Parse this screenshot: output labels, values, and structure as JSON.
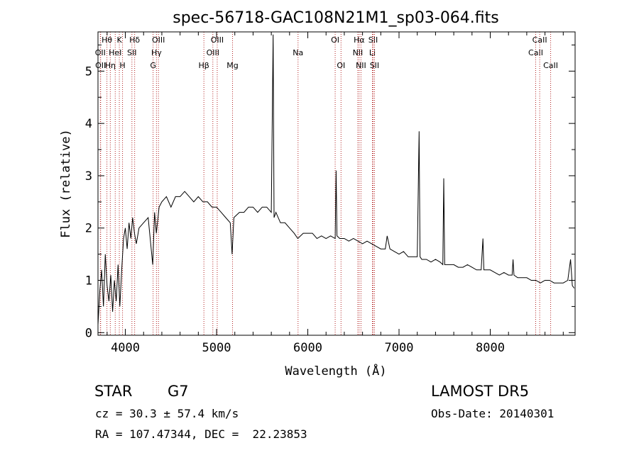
{
  "chart_data": {
    "type": "line",
    "title": "spec-56718-GAC108N21M1_sp03-064.fits",
    "xlabel": "Wavelength (Å)",
    "ylabel": "Flux (relative)",
    "xlim": [
      3700,
      8930
    ],
    "ylim": [
      -0.05,
      5.75
    ],
    "x_ticks": [
      4000,
      5000,
      6000,
      7000,
      8000
    ],
    "y_ticks": [
      0,
      1,
      2,
      3,
      4,
      5
    ],
    "grid": false,
    "line_color": "#000000",
    "marker_color": "#b22222",
    "series": [
      {
        "x": [
          3700,
          3720,
          3740,
          3760,
          3780,
          3800,
          3820,
          3840,
          3860,
          3880,
          3900,
          3920,
          3940,
          3960,
          3980,
          4000,
          4020,
          4040,
          4060,
          4080,
          4100,
          4120,
          4150,
          4200,
          4250,
          4300,
          4320,
          4340,
          4370,
          4400,
          4450,
          4500,
          4550,
          4600,
          4650,
          4700,
          4750,
          4800,
          4850,
          4900,
          4950,
          5000,
          5050,
          5100,
          5150,
          5170,
          5190,
          5250,
          5300,
          5350,
          5400,
          5450,
          5500,
          5550,
          5600,
          5620,
          5630,
          5650,
          5700,
          5750,
          5800,
          5850,
          5890,
          5950,
          6000,
          6050,
          6100,
          6150,
          6200,
          6250,
          6300,
          6310,
          6320,
          6350,
          6400,
          6450,
          6500,
          6550,
          6600,
          6650,
          6700,
          6750,
          6800,
          6850,
          6870,
          6900,
          6950,
          7000,
          7050,
          7100,
          7150,
          7200,
          7220,
          7230,
          7250,
          7300,
          7350,
          7400,
          7450,
          7480,
          7490,
          7500,
          7550,
          7600,
          7650,
          7700,
          7750,
          7800,
          7850,
          7900,
          7920,
          7930,
          7950,
          8000,
          8050,
          8100,
          8150,
          8200,
          8240,
          8250,
          8260,
          8300,
          8350,
          8400,
          8450,
          8500,
          8550,
          8600,
          8650,
          8700,
          8750,
          8800,
          8850,
          8880,
          8900,
          8920
        ],
        "y": [
          0.15,
          0.8,
          1.2,
          0.5,
          1.5,
          0.9,
          0.6,
          1.1,
          0.4,
          1.0,
          0.6,
          1.3,
          0.5,
          1.2,
          1.8,
          2.0,
          1.6,
          2.1,
          1.8,
          2.2,
          1.9,
          1.7,
          2.0,
          2.1,
          2.2,
          1.3,
          2.3,
          1.9,
          2.4,
          2.5,
          2.6,
          2.4,
          2.6,
          2.6,
          2.7,
          2.6,
          2.5,
          2.6,
          2.5,
          2.5,
          2.4,
          2.4,
          2.3,
          2.2,
          2.1,
          1.5,
          2.2,
          2.3,
          2.3,
          2.4,
          2.4,
          2.3,
          2.4,
          2.4,
          2.3,
          5.7,
          2.2,
          2.3,
          2.1,
          2.1,
          2.0,
          1.9,
          1.8,
          1.9,
          1.9,
          1.9,
          1.8,
          1.85,
          1.8,
          1.85,
          1.8,
          3.1,
          1.85,
          1.8,
          1.8,
          1.75,
          1.8,
          1.75,
          1.7,
          1.75,
          1.7,
          1.65,
          1.6,
          1.6,
          1.85,
          1.6,
          1.55,
          1.5,
          1.55,
          1.45,
          1.45,
          1.45,
          3.85,
          1.45,
          1.4,
          1.4,
          1.35,
          1.4,
          1.35,
          1.3,
          2.95,
          1.3,
          1.3,
          1.3,
          1.25,
          1.25,
          1.3,
          1.25,
          1.2,
          1.2,
          1.8,
          1.2,
          1.2,
          1.2,
          1.15,
          1.1,
          1.15,
          1.1,
          1.1,
          1.4,
          1.1,
          1.05,
          1.05,
          1.05,
          1.0,
          1.0,
          0.95,
          1.0,
          1.0,
          0.95,
          0.95,
          0.95,
          1.0,
          1.4,
          0.9,
          0.85
        ]
      }
    ],
    "line_markers": [
      {
        "wl": 3798,
        "label": "Hθ",
        "row": 0
      },
      {
        "wl": 3726,
        "label": "OII",
        "row": 1
      },
      {
        "wl": 3729,
        "label": "OII",
        "row": 2
      },
      {
        "wl": 3835,
        "label": "Hη",
        "row": 2
      },
      {
        "wl": 3889,
        "label": "HeI",
        "row": 1
      },
      {
        "wl": 3934,
        "label": "K",
        "row": 0
      },
      {
        "wl": 3969,
        "label": "H",
        "row": 2
      },
      {
        "wl": 4072,
        "label": "SII",
        "row": 1
      },
      {
        "wl": 4102,
        "label": "Hδ",
        "row": 0
      },
      {
        "wl": 4304,
        "label": "G",
        "row": 2
      },
      {
        "wl": 4341,
        "label": "Hγ",
        "row": 1
      },
      {
        "wl": 4363,
        "label": "OIII",
        "row": 0
      },
      {
        "wl": 4861,
        "label": "Hβ",
        "row": 2
      },
      {
        "wl": 4959,
        "label": "OIII",
        "row": 1
      },
      {
        "wl": 5007,
        "label": "OIII",
        "row": 0
      },
      {
        "wl": 5175,
        "label": "Mg",
        "row": 2
      },
      {
        "wl": 5893,
        "label": "Na",
        "row": 1
      },
      {
        "wl": 6300,
        "label": "OI",
        "row": 0
      },
      {
        "wl": 6364,
        "label": "OI",
        "row": 2
      },
      {
        "wl": 6548,
        "label": "NII",
        "row": 1
      },
      {
        "wl": 6563,
        "label": "Hα",
        "row": 0
      },
      {
        "wl": 6583,
        "label": "NII",
        "row": 2
      },
      {
        "wl": 6708,
        "label": "Li",
        "row": 1
      },
      {
        "wl": 6716,
        "label": "SII",
        "row": 0
      },
      {
        "wl": 6731,
        "label": "SII",
        "row": 2
      },
      {
        "wl": 8498,
        "label": "CaII",
        "row": 1
      },
      {
        "wl": 8542,
        "label": "CaII",
        "row": 0
      },
      {
        "wl": 8662,
        "label": "CaII",
        "row": 2
      }
    ]
  },
  "info": {
    "object_class": "STAR",
    "subclass": "G7",
    "survey": "LAMOST DR5",
    "redshift_line": "cz = 30.3 ± 57.4 km/s",
    "obs_date_line": "Obs-Date: 20140301",
    "coords_line": "RA = 107.47344, DEC =  22.23853"
  }
}
